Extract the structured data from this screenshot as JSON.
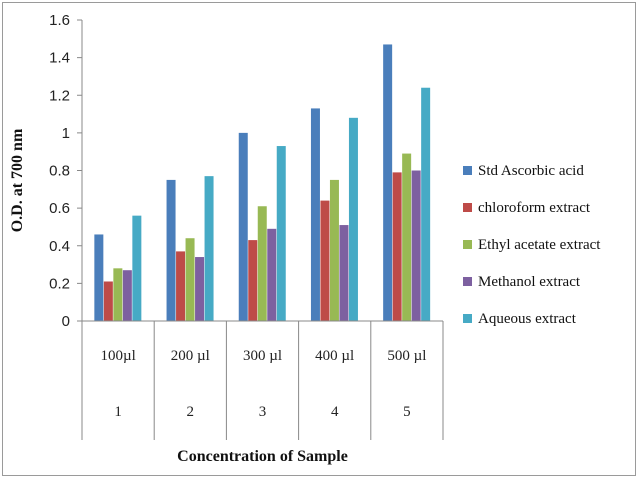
{
  "chart_data": {
    "type": "bar",
    "categories": [
      "100µl",
      "200 µl",
      "300 µl",
      "400 µl",
      "500 µl"
    ],
    "category_numbers": [
      "1",
      "2",
      "3",
      "4",
      "5"
    ],
    "series": [
      {
        "name": "Std Ascorbic acid",
        "color": "#4a7ebb",
        "values": [
          0.46,
          0.75,
          1.0,
          1.13,
          1.47
        ]
      },
      {
        "name": "chloroform extract",
        "color": "#be4b48",
        "values": [
          0.21,
          0.37,
          0.43,
          0.64,
          0.79
        ]
      },
      {
        "name": "Ethyl acetate extract",
        "color": "#98b954",
        "values": [
          0.28,
          0.44,
          0.61,
          0.75,
          0.89
        ]
      },
      {
        "name": "Methanol extract",
        "color": "#7d60a0",
        "values": [
          0.27,
          0.34,
          0.49,
          0.51,
          0.8
        ]
      },
      {
        "name": "Aqueous extract",
        "color": "#46aac5",
        "values": [
          0.56,
          0.77,
          0.93,
          1.08,
          1.24
        ]
      }
    ],
    "y_ticks": [
      "0",
      "0.2",
      "0.4",
      "0.6",
      "0.8",
      "1",
      "1.2",
      "1.4",
      "1.6"
    ],
    "ylim": [
      0,
      1.6
    ],
    "xlabel": "Concentration of Sample",
    "ylabel": "O.D. at 700 nm",
    "grid": false,
    "legend_position": "right"
  }
}
